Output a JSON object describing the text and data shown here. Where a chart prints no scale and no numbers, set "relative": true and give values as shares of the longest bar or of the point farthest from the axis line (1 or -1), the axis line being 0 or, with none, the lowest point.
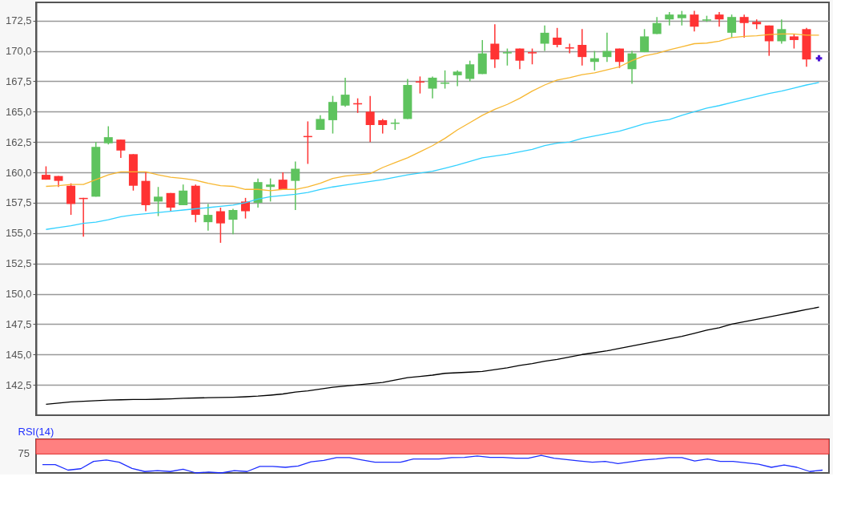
{
  "chart_data": [
    {
      "type": "candlestick",
      "categories": [
        null,
        null,
        null,
        null,
        null,
        null,
        null,
        null,
        null,
        null,
        null,
        null,
        null,
        null,
        null,
        null,
        null,
        null,
        null,
        null,
        null,
        null,
        null,
        null,
        null,
        null,
        null,
        null,
        null,
        null,
        null,
        null,
        null,
        null,
        null,
        null,
        null,
        null,
        null,
        null,
        null,
        null,
        null,
        null,
        null,
        null,
        null,
        null,
        null,
        null,
        null,
        null,
        null,
        null,
        null,
        null,
        null,
        null,
        null,
        null,
        null,
        null,
        null
      ],
      "ohlc": [
        [
          159.8,
          160.5,
          159.4,
          159.4
        ],
        [
          159.7,
          159.7,
          158.8,
          159.3
        ],
        [
          158.9,
          159.1,
          156.5,
          157.4
        ],
        [
          157.9,
          157.9,
          154.7,
          157.8
        ],
        [
          158.0,
          162.5,
          158.0,
          162.1
        ],
        [
          162.4,
          163.8,
          162.3,
          162.9
        ],
        [
          162.7,
          162.7,
          161.2,
          161.8
        ],
        [
          161.5,
          161.5,
          158.5,
          158.9
        ],
        [
          159.3,
          160.0,
          156.8,
          157.3
        ],
        [
          157.6,
          158.8,
          156.4,
          158.0
        ],
        [
          158.3,
          158.3,
          156.8,
          157.1
        ],
        [
          157.3,
          159.0,
          157.3,
          158.5
        ],
        [
          158.9,
          159.0,
          155.9,
          156.5
        ],
        [
          155.9,
          157.4,
          155.2,
          156.5
        ],
        [
          156.8,
          157.1,
          154.2,
          155.8
        ],
        [
          156.1,
          157.0,
          154.9,
          156.9
        ],
        [
          157.6,
          157.9,
          156.2,
          156.8
        ],
        [
          157.5,
          159.5,
          157.1,
          159.2
        ],
        [
          158.8,
          159.5,
          157.6,
          159.0
        ],
        [
          159.4,
          160.0,
          158.6,
          158.6
        ],
        [
          159.3,
          160.9,
          156.9,
          160.3
        ],
        [
          163.0,
          164.2,
          160.7,
          162.9
        ],
        [
          163.5,
          164.7,
          163.5,
          164.4
        ],
        [
          164.3,
          166.3,
          163.2,
          165.8
        ],
        [
          165.5,
          167.8,
          165.4,
          166.4
        ],
        [
          165.7,
          166.1,
          164.9,
          165.6
        ],
        [
          165.0,
          166.3,
          162.5,
          163.9
        ],
        [
          164.3,
          164.4,
          163.2,
          163.9
        ],
        [
          164.0,
          164.4,
          163.5,
          164.1
        ],
        [
          164.4,
          167.7,
          164.4,
          167.2
        ],
        [
          167.5,
          167.9,
          166.5,
          167.4
        ],
        [
          166.9,
          167.9,
          166.1,
          167.8
        ],
        [
          167.3,
          168.4,
          166.9,
          167.4
        ],
        [
          168.0,
          168.4,
          167.1,
          168.3
        ],
        [
          167.7,
          169.2,
          167.5,
          168.9
        ],
        [
          168.1,
          170.9,
          168.1,
          169.8
        ],
        [
          170.6,
          172.2,
          168.6,
          169.3
        ],
        [
          169.8,
          170.2,
          168.8,
          169.9
        ],
        [
          170.2,
          170.2,
          168.5,
          169.2
        ],
        [
          169.9,
          170.2,
          168.9,
          169.8
        ],
        [
          170.6,
          172.1,
          170.0,
          171.5
        ],
        [
          171.1,
          171.9,
          170.3,
          170.5
        ],
        [
          170.3,
          170.6,
          169.8,
          170.2
        ],
        [
          170.5,
          171.8,
          168.8,
          169.5
        ],
        [
          169.1,
          170.0,
          168.4,
          169.4
        ],
        [
          169.5,
          171.5,
          169.1,
          170.0
        ],
        [
          170.2,
          170.2,
          168.6,
          169.1
        ],
        [
          168.5,
          170.0,
          167.3,
          169.8
        ],
        [
          169.9,
          171.8,
          169.9,
          171.2
        ],
        [
          171.4,
          172.8,
          171.4,
          172.3
        ],
        [
          172.6,
          173.2,
          172.1,
          173.0
        ],
        [
          172.7,
          173.3,
          172.1,
          173.0
        ],
        [
          173.0,
          173.3,
          171.6,
          172.0
        ],
        [
          172.5,
          172.9,
          172.4,
          172.6
        ],
        [
          173.0,
          173.2,
          172.0,
          172.6
        ],
        [
          171.5,
          173.0,
          171.1,
          172.8
        ],
        [
          172.8,
          173.0,
          171.1,
          172.3
        ],
        [
          172.4,
          172.6,
          171.8,
          172.2
        ],
        [
          172.1,
          172.1,
          169.6,
          170.8
        ],
        [
          170.8,
          172.6,
          170.6,
          171.8
        ],
        [
          171.2,
          171.4,
          170.2,
          170.9
        ],
        [
          171.8,
          171.9,
          168.7,
          169.3
        ],
        null
      ],
      "colors": [
        "#ff3333",
        "#ff3333",
        "#ff3333",
        "#ff3333",
        "#5ec35e",
        "#5ec35e",
        "#ff3333",
        "#ff3333",
        "#ff3333",
        "#5ec35e",
        "#ff3333",
        "#5ec35e",
        "#ff3333",
        "#5ec35e",
        "#ff3333",
        "#5ec35e",
        "#ff3333",
        "#5ec35e",
        "#5ec35e",
        "#ff3333",
        "#5ec35e",
        "#ff3333",
        "#5ec35e",
        "#5ec35e",
        "#5ec35e",
        "#ff3333",
        "#ff3333",
        "#ff3333",
        "#5ec35e",
        "#5ec35e",
        "#ff3333",
        "#5ec35e",
        "#5ec35e",
        "#5ec35e",
        "#5ec35e",
        "#5ec35e",
        "#ff3333",
        "#5ec35e",
        "#ff3333",
        "#ff3333",
        "#5ec35e",
        "#ff3333",
        "#ff3333",
        "#ff3333",
        "#5ec35e",
        "#5ec35e",
        "#ff3333",
        "#5ec35e",
        "#5ec35e",
        "#5ec35e",
        "#5ec35e",
        "#5ec35e",
        "#ff3333",
        "#5ec35e",
        "#ff3333",
        "#5ec35e",
        "#ff3333",
        "#ff3333",
        "#ff3333",
        "#5ec35e",
        "#ff3333",
        "#ff3333",
        null
      ],
      "series": [
        {
          "type": "line",
          "color": "#000000",
          "values": [
            140.9,
            141.0,
            141.1,
            141.15,
            141.2,
            141.25,
            141.27,
            141.3,
            141.3,
            141.32,
            141.35,
            141.4,
            141.42,
            141.44,
            141.46,
            141.48,
            141.52,
            141.57,
            141.65,
            141.75,
            141.9,
            142.0,
            142.15,
            142.3,
            142.4,
            142.5,
            142.6,
            142.7,
            142.9,
            143.1,
            143.2,
            143.3,
            143.45,
            143.5,
            143.55,
            143.6,
            143.75,
            143.9,
            144.1,
            144.25,
            144.45,
            144.6,
            144.8,
            145.0,
            145.15,
            145.3,
            145.5,
            145.7,
            145.9,
            146.1,
            146.3,
            146.5,
            146.75,
            147.0,
            147.2,
            147.5,
            147.7,
            147.9,
            148.1,
            148.3,
            148.5,
            148.7,
            148.9
          ]
        },
        {
          "type": "line",
          "color": "#33d1ff",
          "values": [
            155.3,
            155.45,
            155.6,
            155.8,
            155.9,
            156.1,
            156.35,
            156.5,
            156.6,
            156.7,
            156.8,
            156.9,
            157.0,
            157.1,
            157.2,
            157.3,
            157.5,
            157.8,
            158.0,
            158.1,
            158.2,
            158.35,
            158.6,
            158.8,
            158.95,
            159.1,
            159.25,
            159.4,
            159.6,
            159.8,
            159.95,
            160.1,
            160.35,
            160.6,
            160.9,
            161.2,
            161.35,
            161.5,
            161.7,
            161.9,
            162.2,
            162.4,
            162.5,
            162.8,
            163.0,
            163.2,
            163.4,
            163.7,
            164.0,
            164.2,
            164.35,
            164.7,
            165.0,
            165.3,
            165.5,
            165.75,
            166.0,
            166.25,
            166.5,
            166.7,
            166.95,
            167.2,
            167.4
          ]
        },
        {
          "type": "line",
          "color": "#f7b731",
          "values": [
            158.85,
            158.9,
            159.0,
            159.0,
            159.4,
            159.8,
            160.05,
            160.05,
            160.05,
            159.8,
            159.6,
            159.5,
            159.35,
            159.1,
            158.9,
            158.85,
            158.6,
            158.6,
            158.5,
            158.6,
            158.6,
            158.8,
            159.1,
            159.5,
            159.7,
            159.8,
            159.9,
            160.4,
            160.8,
            161.2,
            161.7,
            162.2,
            162.8,
            163.5,
            164.1,
            164.7,
            165.2,
            165.6,
            166.1,
            166.7,
            167.2,
            167.6,
            167.8,
            168.05,
            168.2,
            168.45,
            168.7,
            169.2,
            169.6,
            169.8,
            170.1,
            170.35,
            170.6,
            170.65,
            170.8,
            171.1,
            171.2,
            171.25,
            171.35,
            171.4,
            171.4,
            171.3,
            171.3
          ]
        },
        {
          "type": "scatter",
          "color": "#4b14d2",
          "marker": "cross",
          "values": [
            null,
            null,
            null,
            null,
            null,
            null,
            null,
            null,
            null,
            null,
            null,
            null,
            null,
            null,
            null,
            null,
            null,
            null,
            null,
            null,
            null,
            null,
            null,
            null,
            null,
            null,
            null,
            null,
            null,
            null,
            null,
            null,
            null,
            null,
            null,
            null,
            null,
            null,
            null,
            null,
            null,
            null,
            null,
            null,
            null,
            null,
            null,
            null,
            null,
            null,
            null,
            null,
            null,
            null,
            null,
            null,
            null,
            null,
            null,
            null,
            null,
            null,
            169.4
          ]
        }
      ],
      "ylim": [
        140,
        174
      ],
      "yticks": [
        {
          "value": 142.5,
          "label": "142,5"
        },
        {
          "value": 145,
          "label": "145,0"
        },
        {
          "value": 147.5,
          "label": "147,5"
        },
        {
          "value": 150,
          "label": "150,0"
        },
        {
          "value": 152.5,
          "label": "152,5"
        },
        {
          "value": 155,
          "label": "155,0"
        },
        {
          "value": 157.5,
          "label": "157,5"
        },
        {
          "value": 160,
          "label": "160,0"
        },
        {
          "value": 162.5,
          "label": "162,5"
        },
        {
          "value": 165,
          "label": "165,0"
        },
        {
          "value": 167.5,
          "label": "167,5"
        },
        {
          "value": 170,
          "label": "170,0"
        },
        {
          "value": 172.5,
          "label": "172,5"
        }
      ],
      "grid": "y",
      "tick_labels": "y"
    },
    {
      "type": "line",
      "title": "RSI(14)",
      "relative": true,
      "categories": [
        null,
        null,
        null,
        null,
        null,
        null,
        null,
        null,
        null,
        null,
        null,
        null,
        null,
        null,
        null,
        null,
        null,
        null,
        null,
        null,
        null,
        null,
        null,
        null,
        null,
        null,
        null,
        null,
        null,
        null,
        null,
        null,
        null,
        null,
        null,
        null,
        null,
        null,
        null,
        null,
        null,
        null,
        null,
        null,
        null,
        null,
        null,
        null,
        null,
        null,
        null,
        null,
        null,
        null,
        null,
        null,
        null,
        null,
        null,
        null,
        null,
        null
      ],
      "series": [
        {
          "color": "#1f2fff",
          "values": [
            0.47,
            0.47,
            0.16,
            0.24,
            0.66,
            0.74,
            0.61,
            0.26,
            0.08,
            0.13,
            0.08,
            0.21,
            0,
            0.05,
            0,
            0.13,
            0.08,
            0.37,
            0.37,
            0.32,
            0.39,
            0.63,
            0.71,
            0.87,
            0.87,
            0.74,
            0.61,
            0.61,
            0.61,
            0.79,
            0.79,
            0.79,
            0.87,
            0.89,
            0.97,
            0.89,
            0.89,
            0.84,
            0.84,
            1,
            0.84,
            0.76,
            0.68,
            0.61,
            0.66,
            0.53,
            0.63,
            0.74,
            0.79,
            0.87,
            0.87,
            0.68,
            0.79,
            0.66,
            0.66,
            0.58,
            0.5,
            0.32,
            0.45,
            0.32,
            0.08,
            0.16
          ]
        }
      ],
      "bands": [
        {
          "axis": "y",
          "from": 1.08,
          "to": 1.92,
          "color": "#ff8080"
        }
      ],
      "annotations": [
        "75"
      ],
      "tick_labels": false
    }
  ]
}
